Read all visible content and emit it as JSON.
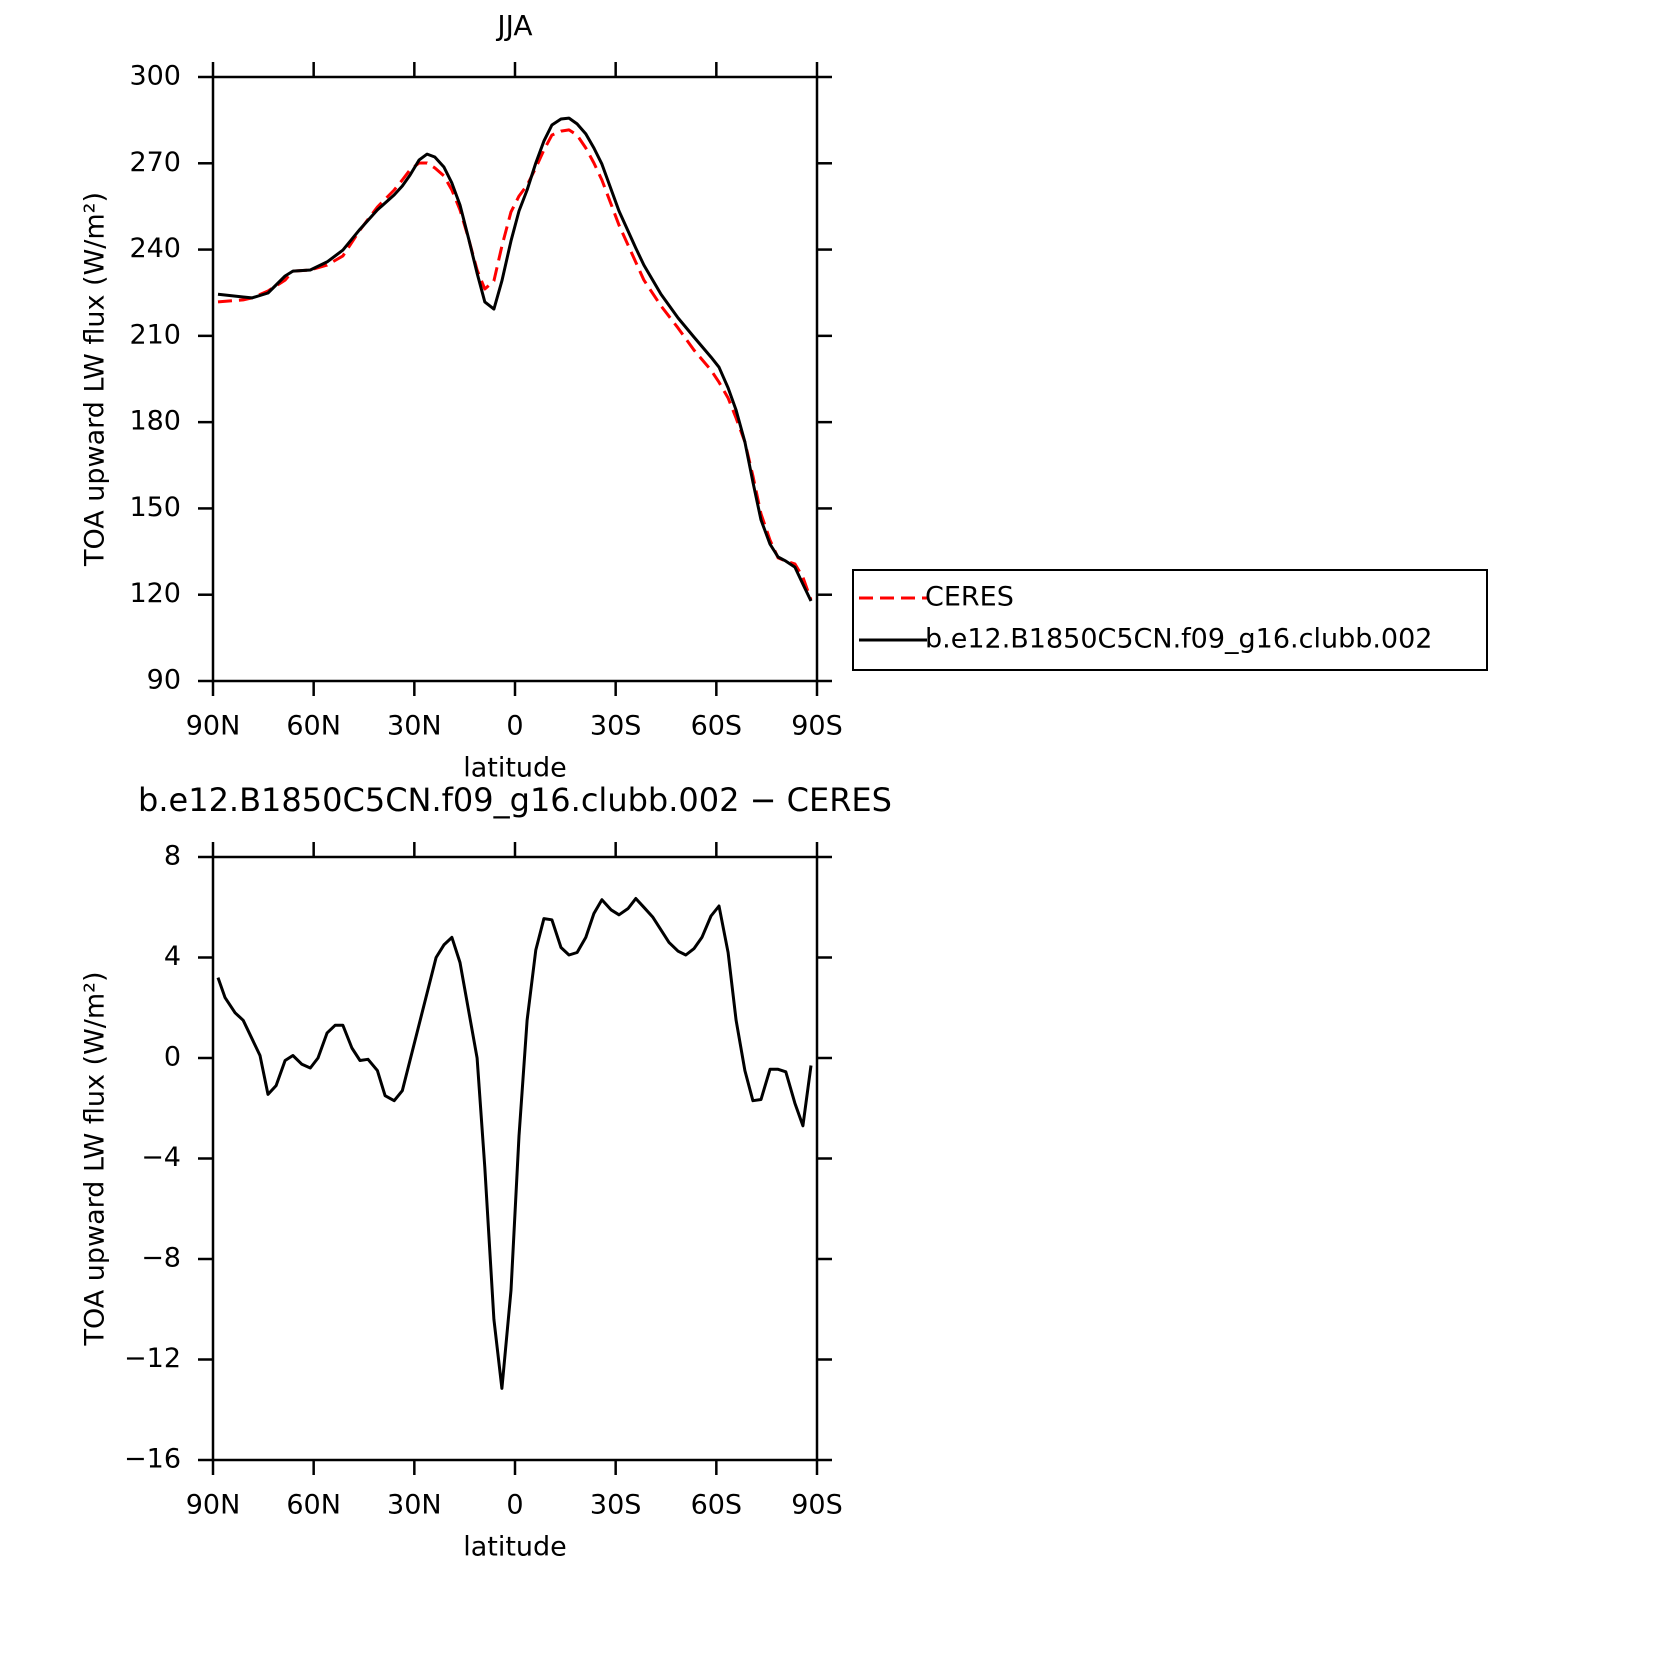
{
  "chart_data": [
    {
      "type": "line",
      "title": "JJA",
      "xlabel": "latitude",
      "ylabel": "TOA upward LW flux (W/m²)",
      "x": [
        88.5,
        81,
        78.4,
        73.6,
        68.5,
        66.2,
        61,
        56,
        51.3,
        46.2,
        41,
        36,
        33.6,
        31.3,
        28.6,
        26.2,
        23.9,
        21.2,
        18.8,
        16.4,
        13.7,
        11.3,
        9,
        6.3,
        3.9,
        1.2,
        -1.2,
        -3.6,
        -6.2,
        -8.6,
        -11,
        -13.7,
        -16.1,
        -18.5,
        -21.1,
        -23.5,
        -25.9,
        -31,
        -36,
        -38.4,
        -43.5,
        -48.6,
        -53.3,
        -58.4,
        -60.8,
        -63.5,
        -65.9,
        -68.5,
        -70.9,
        -73.3,
        -76,
        -78.4,
        -80.7,
        -83.4,
        -85.8,
        -88.2
      ],
      "series": [
        {
          "name": "CERES",
          "color": "#ff0000",
          "dash": true,
          "values": [
            221.8,
            222.5,
            223.2,
            225.6,
            229.4,
            232.5,
            232.9,
            234.6,
            237.8,
            246.8,
            254.8,
            260.7,
            264.2,
            267.7,
            270.1,
            270.1,
            268.4,
            265.6,
            260.7,
            253.8,
            243.3,
            232.9,
            226.3,
            229.1,
            241.2,
            253.1,
            258.6,
            262.4,
            268.4,
            274.6,
            279.8,
            281.2,
            281.6,
            279.8,
            275.3,
            270.1,
            264.2,
            248.5,
            235.6,
            229.4,
            220.4,
            212.7,
            205.1,
            198.1,
            193.9,
            188.4,
            181.4,
            173.1,
            161.3,
            148.1,
            139,
            132.8,
            131.7,
            130.7,
            126.1,
            118.2
          ]
        },
        {
          "name": "b.e12.B1850C5CN.f09_g16.clubb.002",
          "color": "#000000",
          "dash": false,
          "values": [
            224.5,
            223.5,
            223.2,
            224.9,
            230.8,
            232.5,
            232.9,
            235.7,
            239.8,
            247.1,
            253.8,
            259,
            262.1,
            265.9,
            271.1,
            273.2,
            272.2,
            268.7,
            263.1,
            255.5,
            243.3,
            231.8,
            221.8,
            219.3,
            229.1,
            243,
            253.4,
            260.7,
            270.1,
            277.7,
            283.3,
            285.4,
            285.7,
            283.7,
            280.2,
            275.3,
            269.7,
            253.4,
            240.5,
            234.6,
            224.5,
            216.2,
            209.6,
            202.6,
            199.1,
            191.9,
            184.2,
            173.1,
            159.2,
            146,
            137.6,
            133.1,
            131.7,
            129.6,
            123.7,
            117.8
          ]
        }
      ],
      "xlim": [
        90,
        -90
      ],
      "xticks": [
        {
          "value": 90,
          "label": "90N"
        },
        {
          "value": 60,
          "label": "60N"
        },
        {
          "value": 30,
          "label": "30N"
        },
        0,
        {
          "value": -30,
          "label": "30S"
        },
        {
          "value": -60,
          "label": "60S"
        },
        {
          "value": -90,
          "label": "90S"
        }
      ],
      "ylim": [
        90,
        300
      ],
      "yticks": [
        90,
        120,
        150,
        180,
        210,
        240,
        270,
        300
      ],
      "legend": "right"
    },
    {
      "type": "line",
      "title": "b.e12.B1850C5CN.f09_g16.clubb.002 − CERES",
      "xlabel": "latitude",
      "ylabel": "TOA upward LW flux (W/m²)",
      "x": [
        88.5,
        86.4,
        83.4,
        81,
        76,
        73.6,
        71.2,
        68.5,
        66.2,
        63.5,
        61,
        58.7,
        56,
        53.6,
        51.3,
        48.6,
        46.2,
        43.8,
        41,
        38.7,
        36,
        33.6,
        23.5,
        21.2,
        18.8,
        16.4,
        11.3,
        9,
        6.3,
        3.9,
        1.2,
        -1.2,
        -3.6,
        -6.2,
        -8.6,
        -11,
        -13.7,
        -16.1,
        -18.5,
        -21.1,
        -23.5,
        -25.9,
        -28.6,
        -31,
        -33.7,
        -36,
        -38.4,
        -41.1,
        -43.5,
        -45.9,
        -48.6,
        -50.9,
        -53.3,
        -55.7,
        -58.4,
        -60.8,
        -63.5,
        -65.9,
        -68.5,
        -70.9,
        -73.3,
        -76,
        -78.4,
        -80.7,
        -83.4,
        -85.8,
        -88.2
      ],
      "values": [
        3.2,
        2.4,
        1.8,
        1.5,
        0.1,
        -1.45,
        -1.1,
        -0.1,
        0.1,
        -0.25,
        -0.4,
        0,
        1,
        1.3,
        1.3,
        0.4,
        -0.1,
        -0.05,
        -0.5,
        -1.5,
        -1.7,
        -1.3,
        4,
        4.5,
        4.8,
        3.8,
        0,
        -4.35,
        -10.4,
        -13.15,
        -9.25,
        -3.1,
        1.5,
        4.3,
        5.55,
        5.5,
        4.4,
        4.1,
        4.2,
        4.8,
        5.75,
        6.3,
        5.9,
        5.7,
        5.95,
        6.35,
        6,
        5.6,
        5.1,
        4.6,
        4.25,
        4.1,
        4.35,
        4.8,
        5.65,
        6.05,
        4.2,
        1.5,
        -0.5,
        -1.7,
        -1.65,
        -0.45,
        -0.45,
        -0.55,
        -1.8,
        -2.7,
        -0.3
      ],
      "color": "#000000",
      "xlim": [
        90,
        -90
      ],
      "xticks": [
        {
          "value": 90,
          "label": "90N"
        },
        {
          "value": 60,
          "label": "60N"
        },
        {
          "value": 30,
          "label": "30N"
        },
        0,
        {
          "value": -30,
          "label": "30S"
        },
        {
          "value": -60,
          "label": "60S"
        },
        {
          "value": -90,
          "label": "90S"
        }
      ],
      "ylim": [
        -16,
        8
      ],
      "yticks": [
        {
          "value": -16,
          "label": "−16"
        },
        {
          "value": -12,
          "label": "−12"
        },
        {
          "value": -8,
          "label": "−8"
        },
        {
          "value": -4,
          "label": "−4"
        },
        0,
        4,
        8
      ]
    }
  ]
}
